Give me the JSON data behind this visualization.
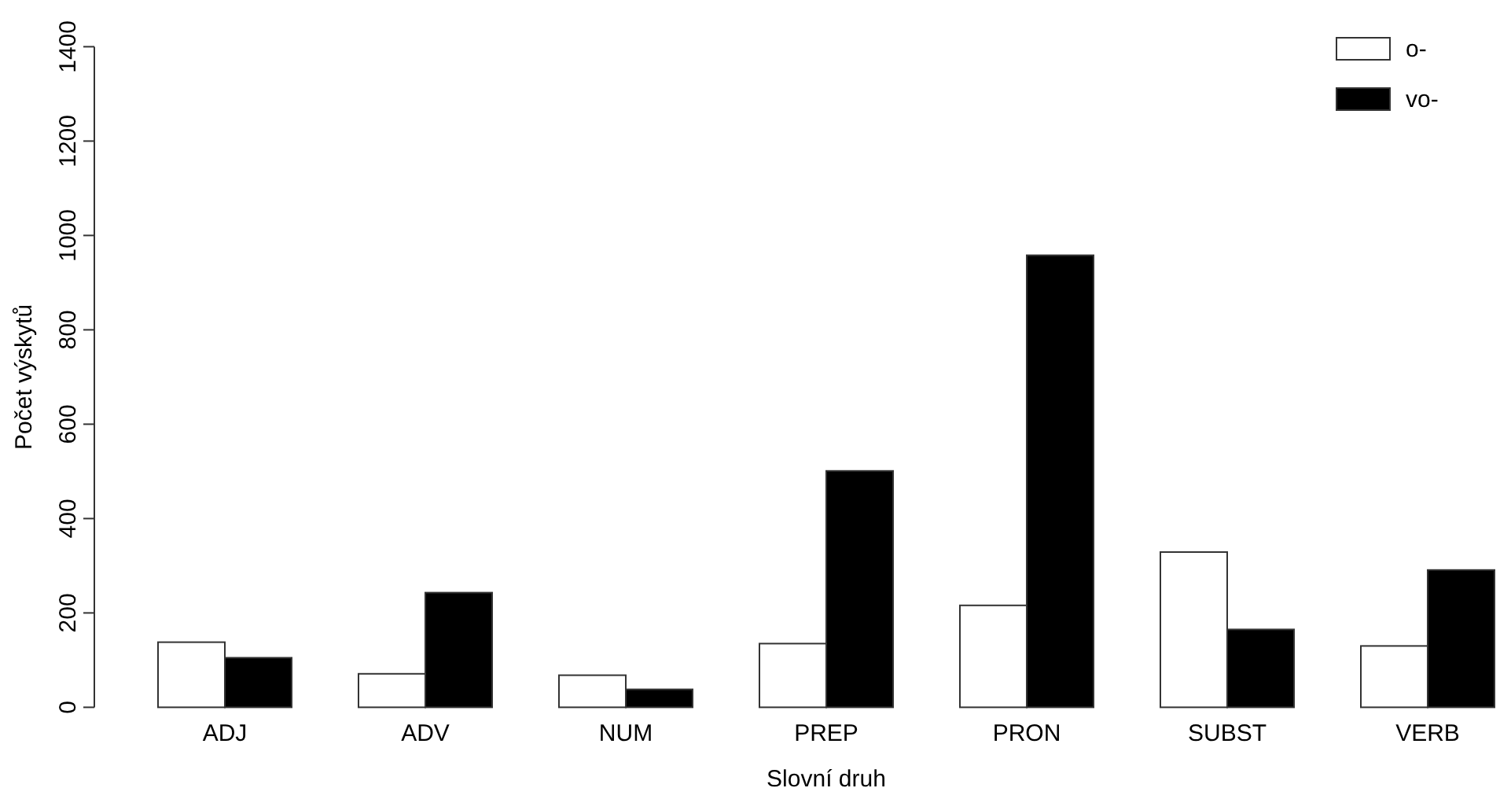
{
  "chart_data": {
    "type": "bar",
    "xlabel": "Slovní druh",
    "ylabel": "Počet výskytů",
    "categories": [
      "ADJ",
      "ADV",
      "NUM",
      "PREP",
      "PRON",
      "SUBST",
      "VERB"
    ],
    "series": [
      {
        "name": "o-",
        "color": "#ffffff",
        "values": [
          138,
          71,
          68,
          135,
          216,
          329,
          130
        ]
      },
      {
        "name": "vo-",
        "color": "#000000",
        "values": [
          105,
          243,
          38,
          501,
          958,
          165,
          291
        ]
      }
    ],
    "ylim": [
      0,
      1400
    ],
    "yticks": [
      0,
      200,
      400,
      600,
      800,
      1000,
      1200,
      1400
    ],
    "legend": "top right"
  }
}
